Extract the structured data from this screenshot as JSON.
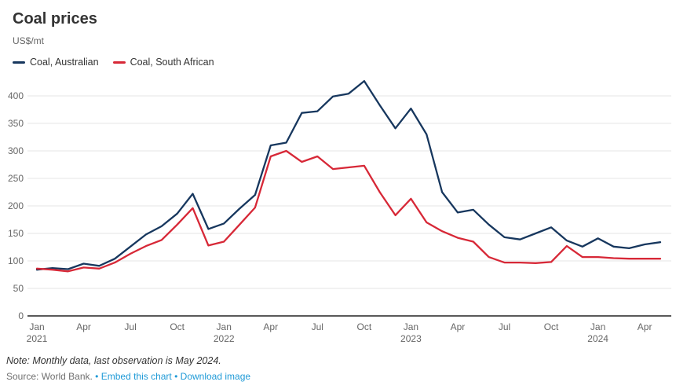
{
  "header": {
    "title": "Coal prices",
    "subtitle": "US$/mt"
  },
  "legend": [
    {
      "label": "Coal, Australian",
      "color": "#17375e"
    },
    {
      "label": "Coal, South African",
      "color": "#d72837"
    }
  ],
  "footer": {
    "note": "Note: Monthly data, last observation is May 2024.",
    "source": "Source: World Bank.",
    "separator": "•",
    "links": [
      "Embed this chart",
      "Download image"
    ]
  },
  "chart_data": {
    "type": "line",
    "title": "Coal prices",
    "ylabel": "US$/mt",
    "xlabel": "",
    "grid": true,
    "legend_position": "top",
    "ylim": [
      0,
      437
    ],
    "yticks": [
      0,
      50,
      100,
      150,
      200,
      250,
      300,
      350,
      400
    ],
    "x": [
      "Jan 2021",
      "Feb 2021",
      "Mar 2021",
      "Apr 2021",
      "May 2021",
      "Jun 2021",
      "Jul 2021",
      "Aug 2021",
      "Sep 2021",
      "Oct 2021",
      "Nov 2021",
      "Dec 2021",
      "Jan 2022",
      "Feb 2022",
      "Mar 2022",
      "Apr 2022",
      "May 2022",
      "Jun 2022",
      "Jul 2022",
      "Aug 2022",
      "Sep 2022",
      "Oct 2022",
      "Nov 2022",
      "Dec 2022",
      "Jan 2023",
      "Feb 2023",
      "Mar 2023",
      "Apr 2023",
      "May 2023",
      "Jun 2023",
      "Jul 2023",
      "Aug 2023",
      "Sep 2023",
      "Oct 2023",
      "Nov 2023",
      "Dec 2023",
      "Jan 2024",
      "Feb 2024",
      "Mar 2024",
      "Apr 2024",
      "May 2024"
    ],
    "x_ticks": [
      {
        "index": 0,
        "label": "Jan",
        "year": "2021"
      },
      {
        "index": 3,
        "label": "Apr"
      },
      {
        "index": 6,
        "label": "Jul"
      },
      {
        "index": 9,
        "label": "Oct"
      },
      {
        "index": 12,
        "label": "Jan",
        "year": "2022"
      },
      {
        "index": 15,
        "label": "Apr"
      },
      {
        "index": 18,
        "label": "Jul"
      },
      {
        "index": 21,
        "label": "Oct"
      },
      {
        "index": 24,
        "label": "Jan",
        "year": "2023"
      },
      {
        "index": 27,
        "label": "Apr"
      },
      {
        "index": 30,
        "label": "Jul"
      },
      {
        "index": 33,
        "label": "Oct"
      },
      {
        "index": 36,
        "label": "Jan",
        "year": "2024"
      },
      {
        "index": 39,
        "label": "Apr"
      }
    ],
    "series": [
      {
        "name": "Coal, Australian",
        "color": "#17375e",
        "values": [
          84,
          87,
          85,
          95,
          91,
          104,
          126,
          148,
          163,
          186,
          222,
          158,
          168,
          195,
          220,
          310,
          315,
          369,
          372,
          399,
          404,
          427,
          383,
          341,
          377,
          330,
          225,
          188,
          193,
          166,
          143,
          139,
          150,
          161,
          137,
          126,
          141,
          126,
          123,
          130,
          134
        ]
      },
      {
        "name": "Coal, South African",
        "color": "#d72837",
        "values": [
          86,
          84,
          81,
          88,
          86,
          97,
          113,
          127,
          138,
          166,
          196,
          128,
          135,
          166,
          197,
          290,
          300,
          280,
          290,
          267,
          270,
          273,
          225,
          183,
          213,
          170,
          154,
          142,
          135,
          107,
          97,
          97,
          96,
          98,
          127,
          107,
          107,
          105,
          104,
          104,
          104
        ]
      }
    ]
  }
}
